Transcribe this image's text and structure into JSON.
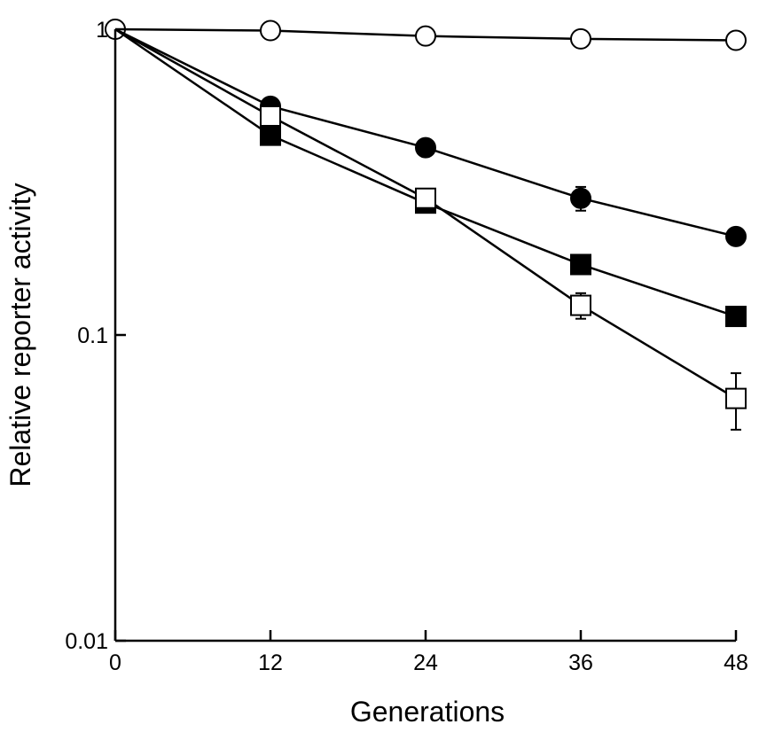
{
  "chart_data": {
    "type": "line",
    "title": "",
    "xlabel": "Generations",
    "ylabel": "Relative reporter activity",
    "x_scale": "linear",
    "y_scale": "log",
    "xlim": [
      0,
      48
    ],
    "ylim": [
      0.01,
      1
    ],
    "x_ticks": [
      0,
      12,
      24,
      36,
      48
    ],
    "x_tick_labels": [
      "0",
      "12",
      "24",
      "36",
      "48"
    ],
    "y_ticks": [
      0.01,
      0.1,
      1
    ],
    "y_tick_labels": [
      "0.01",
      "0.1",
      "1"
    ],
    "grid": false,
    "legend": "none",
    "series": [
      {
        "name": "open circles",
        "marker": "circle",
        "filled": false,
        "x": [
          0,
          12,
          24,
          36,
          48
        ],
        "y": [
          1.0,
          0.99,
          0.95,
          0.93,
          0.92
        ],
        "err": [
          0,
          0,
          0,
          0,
          0
        ]
      },
      {
        "name": "filled circles",
        "marker": "circle",
        "filled": true,
        "x": [
          0,
          12,
          24,
          36,
          48
        ],
        "y": [
          1.0,
          0.56,
          0.41,
          0.28,
          0.21
        ],
        "err": [
          0,
          0,
          0,
          0.025,
          0
        ]
      },
      {
        "name": "filled squares",
        "marker": "square",
        "filled": true,
        "x": [
          0,
          12,
          24,
          36,
          48
        ],
        "y": [
          1.0,
          0.45,
          0.27,
          0.17,
          0.115
        ],
        "err": [
          0,
          0,
          0,
          0,
          0
        ]
      },
      {
        "name": "open squares",
        "marker": "square",
        "filled": false,
        "x": [
          0,
          12,
          24,
          36,
          48
        ],
        "y": [
          1.0,
          0.52,
          0.28,
          0.125,
          0.062
        ],
        "err": [
          0,
          0,
          0,
          0.012,
          0.013
        ]
      }
    ]
  }
}
